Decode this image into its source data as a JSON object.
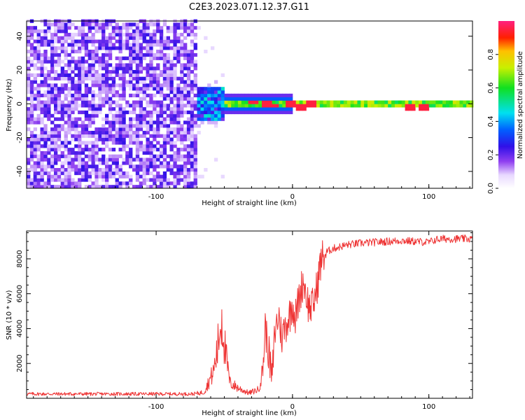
{
  "figure_title": "C2E3.2023.071.12.37.G11",
  "chart_data": [
    {
      "type": "heatmap",
      "xlabel": "Height of straight line (km)",
      "ylabel": "Frequency (Hz)",
      "xlim": [
        -195,
        132
      ],
      "ylim": [
        -50,
        49
      ],
      "xticks": [
        -100,
        0,
        100
      ],
      "yticks": [
        -40,
        -20,
        0,
        20,
        40
      ],
      "colorbar": {
        "label": "Normalized spectral amplitude",
        "range": [
          0,
          1
        ],
        "ticks": [
          0.0,
          0.2,
          0.4,
          0.6,
          0.8
        ],
        "colormap": "white-purple-blue-cyan-green-yellow-red-magenta"
      },
      "regions": [
        {
          "name": "noise",
          "x_range": [
            -195,
            -72
          ],
          "freq_range": [
            -50,
            49
          ],
          "amplitude": "0.1-0.25"
        },
        {
          "name": "onset",
          "x_range": [
            -72,
            -50
          ],
          "freq_range": [
            -10,
            10
          ],
          "amplitude": "0.2-0.45"
        },
        {
          "name": "carrier",
          "x_range": [
            -50,
            132
          ],
          "center_freq": 0,
          "half_width_hz": [
            6,
            2
          ],
          "peak_amplitude": 1.0
        }
      ],
      "peaks": [
        {
          "x": -30,
          "y": 1
        },
        {
          "x": -20,
          "y": 0
        },
        {
          "x": -15,
          "y": -1
        },
        {
          "x": -2,
          "y": 0
        },
        {
          "x": 5,
          "y": -2
        },
        {
          "x": 12,
          "y": 0
        },
        {
          "x": 85,
          "y": -2
        },
        {
          "x": 95,
          "y": -2
        }
      ]
    },
    {
      "type": "line",
      "xlabel": "Height of straight line (km)",
      "ylabel": "SNR (10 * v/v)",
      "xlim": [
        -195,
        132
      ],
      "ylim": [
        0,
        9600
      ],
      "xticks": [
        -100,
        0,
        100
      ],
      "yticks": [
        2000,
        4000,
        6000,
        8000
      ],
      "series": [
        {
          "color": "#ee3333",
          "x": [
            -195,
            -150,
            -100,
            -72,
            -65,
            -58,
            -55,
            -52,
            -49,
            -46,
            -40,
            -32,
            -25,
            -22,
            -20,
            -18,
            -15,
            -13,
            -10,
            -8,
            -5,
            -2,
            0,
            2,
            5,
            8,
            10,
            12,
            15,
            18,
            20,
            22,
            25,
            30,
            35,
            40,
            50,
            60,
            70,
            80,
            90,
            100,
            105,
            110,
            120,
            132
          ],
          "y": [
            250,
            250,
            250,
            250,
            350,
            1500,
            2800,
            4800,
            2500,
            900,
            600,
            300,
            500,
            1500,
            4000,
            3000,
            1000,
            3800,
            4800,
            3500,
            4200,
            4800,
            5500,
            4600,
            5800,
            6800,
            6000,
            5200,
            5300,
            6400,
            7500,
            8100,
            8400,
            8600,
            8700,
            8800,
            8900,
            8950,
            9000,
            9050,
            9000,
            8950,
            9100,
            9150,
            9150,
            9150
          ]
        }
      ]
    }
  ]
}
